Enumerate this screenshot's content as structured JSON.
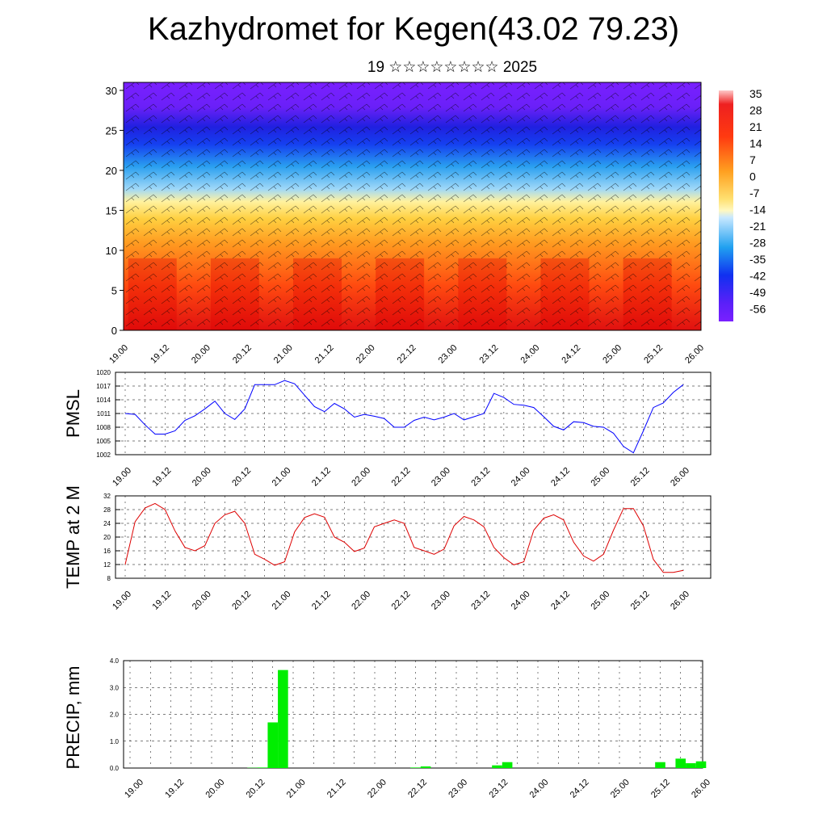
{
  "header": {
    "title": "Kazhydromet for Kegen(43.02 79.23)",
    "subtitle": "19 ☆☆☆☆☆☆☆☆ 2025"
  },
  "x_ticks": [
    "19.00",
    "19.12",
    "20.00",
    "20.12",
    "21.00",
    "21.12",
    "22.00",
    "22.12",
    "23.00",
    "23.12",
    "24.00",
    "24.12",
    "25.00",
    "25.12",
    "26.00"
  ],
  "chart_data": [
    {
      "type": "heatmap",
      "description_key": "cross-section",
      "xlabel": "",
      "ylabel": "",
      "y_ticks": [
        0,
        5,
        10,
        15,
        20,
        25,
        30
      ],
      "ylim": [
        0,
        31
      ],
      "colorbar_labels": [
        "35",
        "28",
        "21",
        "14",
        "7",
        "0",
        "-7",
        "-14",
        "-21",
        "-28",
        "-35",
        "-42",
        "-49",
        "-56"
      ],
      "colors": {
        "warm": "#e60000",
        "mid": "#ffe680",
        "cool": "#1e90ff",
        "cold": "#7f1fff"
      }
    },
    {
      "type": "line",
      "ylabel": "PMSL",
      "ylim": [
        1002,
        1020
      ],
      "y_ticks": [
        1002,
        1005,
        1008,
        1011,
        1014,
        1017,
        1020
      ],
      "color": "#0000ff",
      "series": [
        {
          "x": [
            0,
            3,
            6,
            9,
            12,
            15,
            18,
            21,
            24,
            27,
            30,
            33,
            36,
            39,
            42,
            45,
            48,
            51,
            54,
            57,
            60,
            63,
            66,
            69,
            72,
            75,
            78,
            81,
            84,
            87,
            90,
            93,
            96,
            99,
            102,
            105,
            108,
            111,
            114,
            117,
            120,
            123,
            126,
            129,
            132,
            135,
            138,
            141,
            144,
            147,
            150,
            153,
            156,
            159,
            162,
            165,
            168
          ],
          "values": [
            1011,
            1010.8,
            1008.5,
            1006.5,
            1006.5,
            1007.2,
            1009.5,
            1010.5,
            1012,
            1013.7,
            1011,
            1009.7,
            1012,
            1017.3,
            1017.3,
            1017.3,
            1018.2,
            1017.5,
            1015,
            1012.5,
            1011.4,
            1013.2,
            1012,
            1010.2,
            1010.8,
            1010.4,
            1009.9,
            1008,
            1008,
            1009.5,
            1010.2,
            1009.6,
            1010.2,
            1011,
            1009.6,
            1010.3,
            1011,
            1015.4,
            1014.5,
            1013,
            1012.8,
            1012.3,
            1010.3,
            1008.2,
            1007.4,
            1009.2,
            1009,
            1008.2,
            1008,
            1006.7,
            1003.8,
            1002.4,
            1007.2,
            1012.3,
            1013.3,
            1015.6,
            1017.3
          ]
        }
      ]
    },
    {
      "type": "line",
      "ylabel": "TEMP at 2 M",
      "ylim": [
        8,
        32
      ],
      "y_ticks": [
        8,
        12,
        16,
        20,
        24,
        28,
        32
      ],
      "color": "#dd0000",
      "series": [
        {
          "x": [
            0,
            3,
            6,
            9,
            12,
            15,
            18,
            21,
            24,
            27,
            30,
            33,
            36,
            39,
            42,
            45,
            48,
            51,
            54,
            57,
            60,
            63,
            66,
            69,
            72,
            75,
            78,
            81,
            84,
            87,
            90,
            93,
            96,
            99,
            102,
            105,
            108,
            111,
            114,
            117,
            120,
            123,
            126,
            129,
            132,
            135,
            138,
            141,
            144,
            147,
            150,
            153,
            156,
            159,
            162,
            165,
            168
          ],
          "values": [
            12,
            24.5,
            28.5,
            29.8,
            28,
            21.8,
            17,
            16,
            17.5,
            24,
            26.5,
            27.5,
            24,
            15,
            13.5,
            11.8,
            12.8,
            21.5,
            25.7,
            26.8,
            25.8,
            20,
            18.5,
            15.8,
            16.8,
            23,
            24,
            25,
            24,
            17,
            16,
            15,
            16.5,
            23.3,
            26,
            25,
            23,
            17,
            14,
            11.9,
            12.8,
            22,
            25.5,
            26.5,
            25,
            18.5,
            14.5,
            13,
            15,
            22,
            28.3,
            28.3,
            23.3,
            13.5,
            9.7,
            9.7,
            10.3
          ]
        }
      ]
    },
    {
      "type": "bar",
      "ylabel": "PRECIP, mm",
      "ylim": [
        0,
        4
      ],
      "y_ticks": [
        "0.0",
        "1.0",
        "2.0",
        "3.0",
        "4.0"
      ],
      "color": "#00ee00",
      "x": [
        36,
        39,
        42,
        45,
        66,
        69,
        84,
        87,
        90,
        93,
        108,
        111,
        114,
        117,
        120,
        123,
        150,
        153,
        156,
        159,
        162,
        165,
        168
      ],
      "values": [
        0.01,
        0.02,
        1.7,
        3.65,
        0.0,
        0.0,
        0.02,
        0.06,
        0.0,
        0.0,
        0.1,
        0.22,
        0.0,
        0.0,
        0.0,
        0.0,
        0.0,
        0.0,
        0.22,
        0.0,
        0.35,
        0.18,
        0.25
      ]
    }
  ]
}
